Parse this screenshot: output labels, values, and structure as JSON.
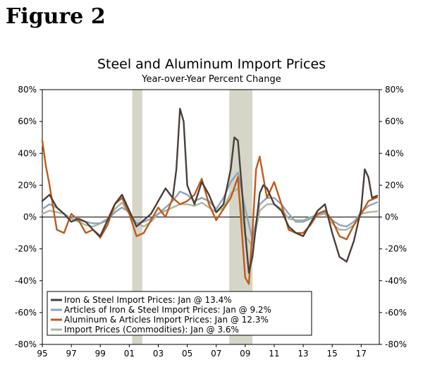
{
  "figure_label": "Figure 2",
  "chart_data": {
    "type": "line",
    "title": "Steel and Aluminum Import Prices",
    "subtitle": "Year-over-Year Percent Change",
    "xlabel": "",
    "ylabel": "",
    "xlim": [
      1995,
      2018.25
    ],
    "ylim": [
      -80,
      80
    ],
    "x_ticks": [
      1995,
      1997,
      1999,
      2001,
      2003,
      2005,
      2007,
      2009,
      2011,
      2013,
      2015,
      2017
    ],
    "x_tick_labels": [
      "95",
      "97",
      "99",
      "01",
      "03",
      "05",
      "07",
      "09",
      "11",
      "13",
      "15",
      "17"
    ],
    "y_ticks": [
      -80,
      -60,
      -40,
      -20,
      0,
      20,
      40,
      60,
      80
    ],
    "y_tick_labels": [
      "-80%",
      "-60%",
      "-40%",
      "-20%",
      "0%",
      "20%",
      "40%",
      "60%",
      "80%"
    ],
    "recessions": [
      [
        2001.2,
        2001.9
      ],
      [
        2007.9,
        2009.5
      ]
    ],
    "legend_position": "bottom-left",
    "series": [
      {
        "name": "Iron & Steel Import Prices: Jan @ 13.4%",
        "color": "#4a3f3a",
        "x": [
          1995,
          1995.5,
          1996,
          1996.5,
          1997,
          1997.5,
          1998,
          1998.5,
          1999,
          1999.5,
          2000,
          2000.5,
          2001,
          2001.5,
          2002,
          2002.5,
          2003,
          2003.5,
          2004,
          2004.25,
          2004.5,
          2004.75,
          2005,
          2005.5,
          2006,
          2006.5,
          2007,
          2007.5,
          2008,
          2008.25,
          2008.5,
          2008.75,
          2009,
          2009.25,
          2009.5,
          2009.75,
          2010,
          2010.25,
          2010.5,
          2011,
          2011.5,
          2012,
          2012.5,
          2013,
          2013.5,
          2014,
          2014.5,
          2015,
          2015.5,
          2016,
          2016.5,
          2017,
          2017.25,
          2017.5,
          2017.75,
          2018.1
        ],
        "values": [
          10,
          14,
          6,
          2,
          -3,
          -1,
          -3,
          -8,
          -12,
          -2,
          8,
          14,
          4,
          -6,
          -2,
          2,
          10,
          18,
          12,
          30,
          68,
          60,
          20,
          8,
          22,
          14,
          3,
          8,
          30,
          50,
          48,
          20,
          -10,
          -35,
          -25,
          -5,
          15,
          20,
          18,
          8,
          4,
          -6,
          -10,
          -12,
          -4,
          4,
          8,
          -10,
          -25,
          -28,
          -15,
          5,
          30,
          25,
          12,
          13.4
        ]
      },
      {
        "name": "Articles of Iron & Steel Import Prices: Jan @ 9.2%",
        "color": "#8fa3b8",
        "x": [
          1995,
          1995.5,
          1996,
          1996.5,
          1997,
          1997.5,
          1998,
          1998.5,
          1999,
          1999.5,
          2000,
          2000.5,
          2001,
          2001.5,
          2002,
          2002.5,
          2003,
          2003.5,
          2004,
          2004.5,
          2005,
          2005.5,
          2006,
          2006.5,
          2007,
          2007.5,
          2008,
          2008.5,
          2009,
          2009.5,
          2010,
          2010.5,
          2011,
          2011.5,
          2012,
          2012.5,
          2013,
          2013.5,
          2014,
          2014.5,
          2015,
          2015.5,
          2016,
          2016.5,
          2017,
          2017.5,
          2018.1
        ],
        "values": [
          5,
          8,
          6,
          2,
          -1,
          -2,
          -3,
          -4,
          -4,
          -2,
          3,
          6,
          3,
          -4,
          -3,
          -1,
          2,
          6,
          10,
          16,
          14,
          10,
          12,
          10,
          5,
          12,
          22,
          28,
          5,
          -14,
          8,
          12,
          12,
          8,
          2,
          -3,
          -3,
          -1,
          2,
          3,
          -2,
          -5,
          -6,
          -3,
          3,
          7,
          9.2
        ]
      },
      {
        "name": "Aluminum & Articles Import Prices: Jan @ 12.3%",
        "color": "#c15a1b",
        "x": [
          1995,
          1995.25,
          1995.5,
          1996,
          1996.5,
          1997,
          1997.5,
          1998,
          1998.5,
          1999,
          1999.5,
          2000,
          2000.5,
          2001,
          2001.5,
          2002,
          2002.5,
          2003,
          2003.5,
          2004,
          2004.5,
          2005,
          2005.5,
          2006,
          2006.5,
          2007,
          2007.5,
          2008,
          2008.5,
          2009,
          2009.25,
          2009.5,
          2009.75,
          2010,
          2010.5,
          2011,
          2011.5,
          2012,
          2012.5,
          2013,
          2013.5,
          2014,
          2014.5,
          2015,
          2015.5,
          2016,
          2016.5,
          2017,
          2017.5,
          2018.1
        ],
        "values": [
          48,
          32,
          20,
          -8,
          -10,
          2,
          -2,
          -10,
          -8,
          -13,
          -5,
          8,
          12,
          2,
          -12,
          -10,
          -2,
          6,
          0,
          12,
          8,
          10,
          14,
          24,
          8,
          -2,
          5,
          12,
          25,
          -38,
          -42,
          -10,
          30,
          38,
          12,
          22,
          8,
          -8,
          -10,
          -10,
          -5,
          2,
          4,
          -2,
          -12,
          -14,
          -5,
          2,
          10,
          12.3
        ]
      },
      {
        "name": "Import Prices (Commodities): Jan @ 3.6%",
        "color": "#a8b89a",
        "x": [
          1995,
          1995.5,
          1996,
          1996.5,
          1997,
          1997.5,
          1998,
          1998.5,
          1999,
          1999.5,
          2000,
          2000.5,
          2001,
          2001.5,
          2002,
          2002.5,
          2003,
          2003.5,
          2004,
          2004.5,
          2005,
          2005.5,
          2006,
          2006.5,
          2007,
          2007.5,
          2008,
          2008.5,
          2009,
          2009.5,
          2010,
          2010.5,
          2011,
          2011.5,
          2012,
          2012.5,
          2013,
          2013.5,
          2014,
          2014.5,
          2015,
          2015.5,
          2016,
          2016.5,
          2017,
          2017.5,
          2018.1
        ],
        "values": [
          2,
          4,
          3,
          2,
          -1,
          -3,
          -5,
          -6,
          -4,
          -1,
          5,
          9,
          2,
          -4,
          -6,
          -3,
          2,
          4,
          6,
          8,
          8,
          7,
          9,
          6,
          3,
          6,
          15,
          18,
          -12,
          -18,
          4,
          8,
          8,
          5,
          -1,
          -2,
          -2,
          0,
          1,
          2,
          -4,
          -8,
          -8,
          -5,
          2,
          3,
          3.6
        ]
      }
    ]
  }
}
